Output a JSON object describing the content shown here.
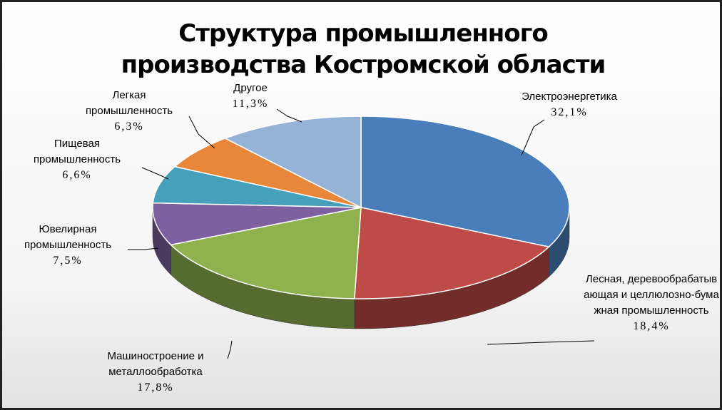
{
  "chart_data": {
    "type": "pie",
    "title": "Структура промышленного производства Костромской области",
    "categories": [
      "Электроэнергетика",
      "Лесная, деревообрабатывающая и целлюлозно-бумажная промышленность",
      "Машиностроение и металлообработка",
      "Ювелирная промышленность",
      "Пищевая промышленность",
      "Легкая промышленность",
      "Другое"
    ],
    "values": [
      32.1,
      18.4,
      17.8,
      7.5,
      6.6,
      6.3,
      11.3
    ],
    "value_labels": [
      "32,1%",
      "18,4%",
      "17,8%",
      "7,5%",
      "6,6%",
      "6,3%",
      "11,3%"
    ],
    "colors": [
      "#4a7ebb",
      "#be4b48",
      "#8fb24f",
      "#7d60a0",
      "#46a0bb",
      "#e8873a",
      "#95b3d7"
    ]
  }
}
